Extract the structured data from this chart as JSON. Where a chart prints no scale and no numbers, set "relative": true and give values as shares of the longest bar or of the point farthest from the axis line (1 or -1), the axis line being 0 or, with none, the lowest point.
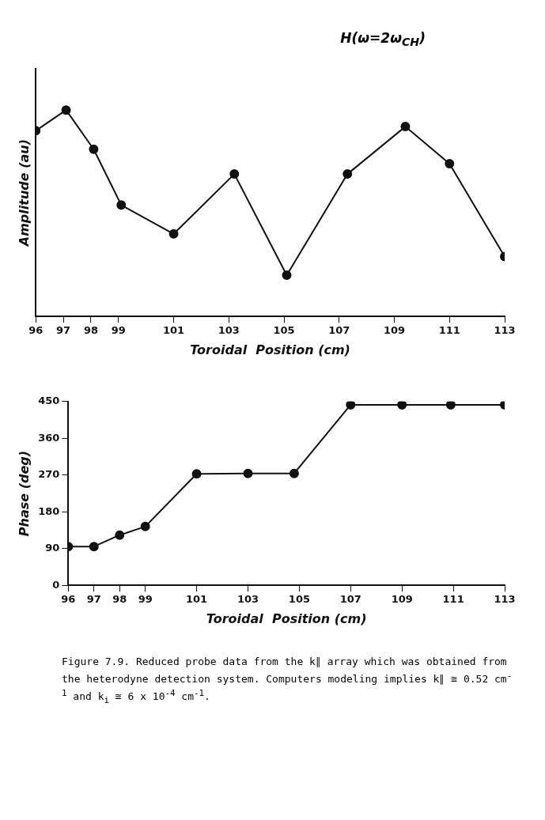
{
  "chart_data": [
    {
      "type": "line",
      "title": "H(ω=2ω$_{CH}$)",
      "xlabel": "Toroidal  Position (cm)",
      "ylabel": "Amplitude (au)",
      "relative": true,
      "x": [
        96,
        97.1,
        98.1,
        99.1,
        101,
        103.2,
        105.1,
        107.3,
        109.4,
        111,
        113
      ],
      "series": [
        {
          "color": "#111111",
          "values": [
            0.9,
            1,
            0.81,
            0.54,
            0.4,
            0.69,
            0.2,
            0.69,
            0.92,
            0.74,
            0.29
          ]
        }
      ],
      "xlim": [
        96,
        113
      ],
      "xticks": [
        96,
        97,
        98,
        99,
        101,
        103,
        105,
        107,
        109,
        111,
        113
      ],
      "marker": "circle",
      "line_style": "solid",
      "grid": false
    },
    {
      "type": "line",
      "xlabel": "Toroidal  Position (cm)",
      "ylabel": "Phase (deg)",
      "x": [
        96,
        97,
        98,
        99,
        101,
        103,
        104.8,
        107,
        109,
        110.9,
        113
      ],
      "series": [
        {
          "color": "#111111",
          "values": [
            95,
            95,
            123,
            144,
            273,
            274,
            274,
            442,
            442,
            442,
            442
          ]
        }
      ],
      "xlim": [
        96,
        113
      ],
      "xticks": [
        96,
        97,
        98,
        99,
        101,
        103,
        105,
        107,
        109,
        111,
        113
      ],
      "ylim": [
        0,
        450
      ],
      "yticks": [
        0,
        90,
        180,
        270,
        360,
        450
      ],
      "marker": "circle",
      "line_style": "solid",
      "grid": false,
      "annotations": [
        "Figure 7.9. Reduced probe data from the k∥ array which was obtained from the heterodyne detection system. Computers modeling implies k∥ ≅ 0.52 cm$^{-1}$ and k$_{i}$ ≅ 6 x 10$^{-4}$ cm$^{-1}$."
      ]
    }
  ]
}
